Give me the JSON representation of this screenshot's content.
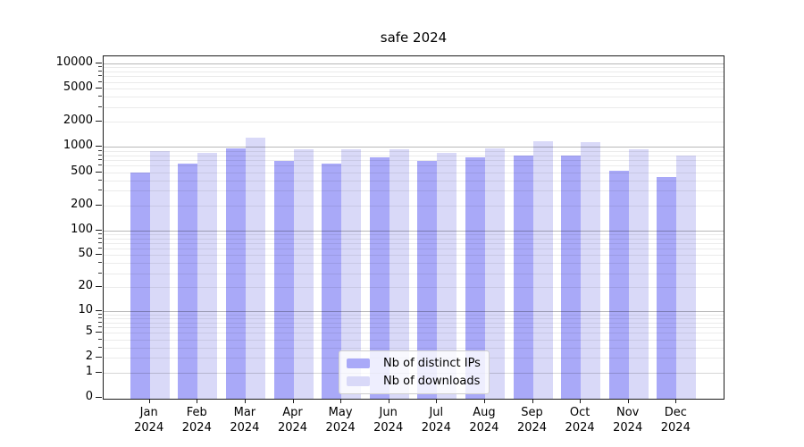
{
  "chart_data": {
    "type": "bar",
    "title": "safe 2024",
    "xlabel": "",
    "ylabel": "",
    "categories": [
      "Jan",
      "Feb",
      "Mar",
      "Apr",
      "May",
      "Jun",
      "Jul",
      "Aug",
      "Sep",
      "Oct",
      "Nov",
      "Dec"
    ],
    "category_year": "2024",
    "series": [
      {
        "name": "Nb of distinct IPs",
        "color": "#a9a9f8",
        "values": [
          500,
          640,
          970,
          690,
          640,
          760,
          690,
          760,
          800,
          800,
          520,
          440
        ]
      },
      {
        "name": "Nb of downloads",
        "color": "#d9d9f8",
        "values": [
          900,
          860,
          1300,
          950,
          930,
          950,
          860,
          960,
          1180,
          1150,
          940,
          800
        ]
      }
    ],
    "y_axis": {
      "scale": "log(value+1)",
      "tick_labels": [
        0,
        1,
        2,
        5,
        10,
        20,
        50,
        100,
        200,
        500,
        1000,
        2000,
        5000,
        10000
      ],
      "major_grid_values": [
        10,
        100,
        1000,
        10000
      ],
      "range": [
        0,
        12000
      ],
      "grid": "on"
    },
    "legend_position": "lower center (inside plot)"
  }
}
